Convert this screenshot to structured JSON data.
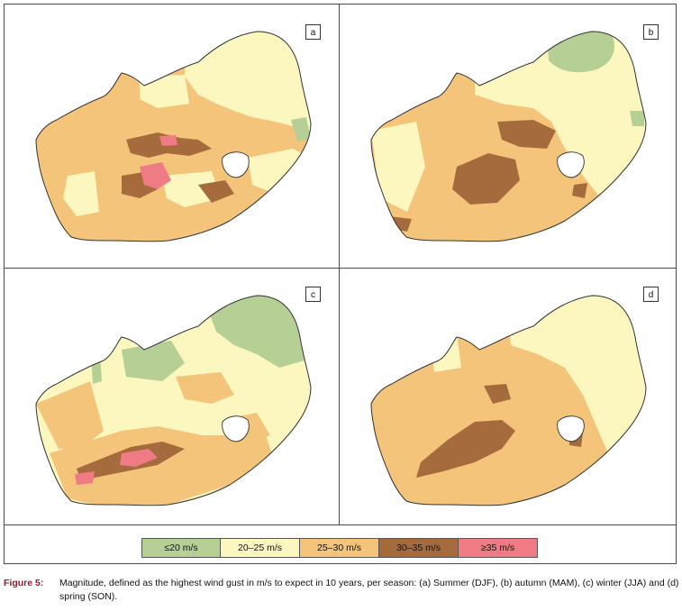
{
  "panels": [
    {
      "label": "a",
      "season": "Summer (DJF)"
    },
    {
      "label": "b",
      "season": "Autumn (MAM)"
    },
    {
      "label": "c",
      "season": "Winter (JJA)"
    },
    {
      "label": "d",
      "season": "Spring (SON)"
    }
  ],
  "legend": [
    {
      "label": "≤20 m/s",
      "color": "#b6cf94"
    },
    {
      "label": "20–25 m/s",
      "color": "#fcf6bf"
    },
    {
      "label": "25–30 m/s",
      "color": "#f3c47a"
    },
    {
      "label": "30–35 m/s",
      "color": "#a66b3c"
    },
    {
      "label": "≥35 m/s",
      "color": "#ef7b84"
    }
  ],
  "caption": {
    "label": "Figure 5:",
    "text": "Magnitude, defined as the highest wind gust in m/s to expect in 10 years, per season: (a) Summer (DJF), (b) autumn (MAM), (c) winter (JJA) and (d) spring (SON)."
  }
}
